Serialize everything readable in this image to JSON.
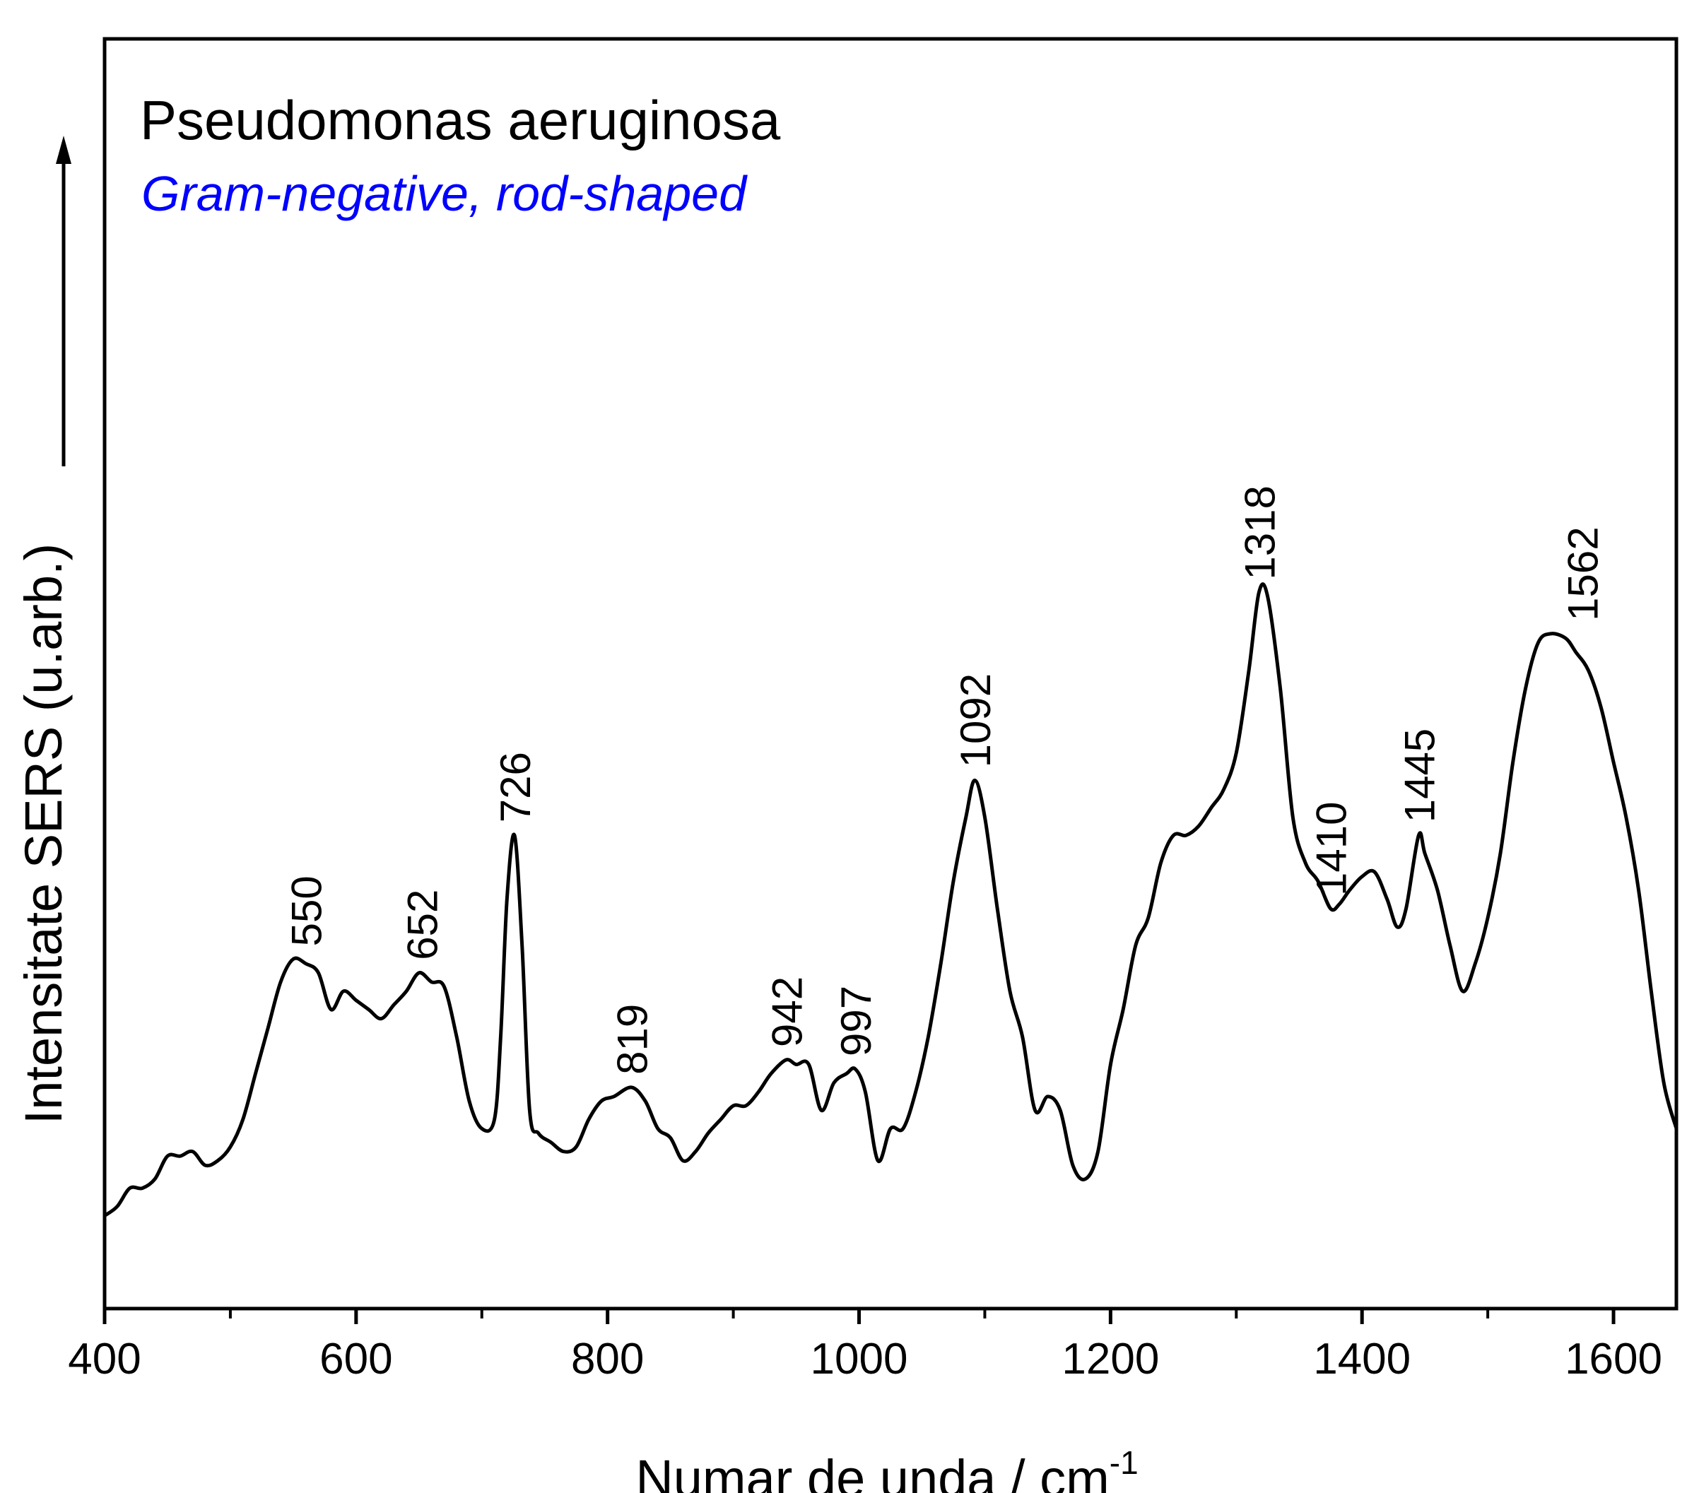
{
  "chart_data": {
    "type": "line",
    "title": "Pseudomonas aeruginosa",
    "subtitle": "Gram-negative, rod-shaped",
    "xlabel_main": "Numar de unda / cm",
    "xlabel_sup": "-1",
    "ylabel": "Intensitate SERS (u.arb.)",
    "xlim": [
      400,
      1650
    ],
    "ylim": [
      0,
      1
    ],
    "x_ticks": [
      400,
      600,
      800,
      1000,
      1200,
      1400,
      1600
    ],
    "x_minor_ticks": [
      500,
      700,
      900,
      1100,
      1300,
      1500
    ],
    "y_ticks_shown": false,
    "colors": {
      "line": "#000000",
      "subtitle": "#0000ff",
      "axis": "#000000"
    },
    "series": [
      {
        "name": "Pseudomonas aeruginosa",
        "x": [
          400,
          410,
          420,
          430,
          440,
          450,
          460,
          470,
          480,
          490,
          500,
          510,
          520,
          530,
          540,
          550,
          560,
          570,
          580,
          590,
          600,
          610,
          620,
          630,
          640,
          650,
          660,
          670,
          680,
          690,
          700,
          710,
          715,
          720,
          726,
          732,
          738,
          745,
          755,
          765,
          775,
          785,
          795,
          805,
          819,
          830,
          840,
          850,
          860,
          870,
          880,
          890,
          900,
          910,
          920,
          930,
          942,
          950,
          960,
          970,
          980,
          990,
          997,
          1005,
          1015,
          1025,
          1035,
          1045,
          1055,
          1065,
          1075,
          1085,
          1092,
          1100,
          1110,
          1120,
          1130,
          1140,
          1150,
          1160,
          1170,
          1180,
          1190,
          1200,
          1210,
          1220,
          1230,
          1240,
          1250,
          1260,
          1270,
          1280,
          1290,
          1300,
          1310,
          1318,
          1325,
          1335,
          1345,
          1355,
          1365,
          1375,
          1382,
          1390,
          1400,
          1410,
          1420,
          1428,
          1435,
          1445,
          1450,
          1460,
          1470,
          1480,
          1490,
          1500,
          1510,
          1520,
          1530,
          1540,
          1550,
          1562,
          1570,
          1580,
          1590,
          1600,
          1610,
          1620,
          1630,
          1640,
          1650
        ],
        "y": [
          0.005,
          0.015,
          0.035,
          0.035,
          0.045,
          0.07,
          0.07,
          0.075,
          0.06,
          0.065,
          0.08,
          0.11,
          0.16,
          0.21,
          0.26,
          0.285,
          0.28,
          0.27,
          0.23,
          0.25,
          0.24,
          0.23,
          0.22,
          0.235,
          0.25,
          0.27,
          0.26,
          0.255,
          0.2,
          0.13,
          0.1,
          0.11,
          0.2,
          0.35,
          0.42,
          0.3,
          0.12,
          0.095,
          0.085,
          0.075,
          0.08,
          0.11,
          0.13,
          0.135,
          0.145,
          0.13,
          0.1,
          0.09,
          0.065,
          0.075,
          0.095,
          0.11,
          0.125,
          0.125,
          0.14,
          0.16,
          0.175,
          0.17,
          0.17,
          0.12,
          0.15,
          0.16,
          0.165,
          0.14,
          0.065,
          0.1,
          0.1,
          0.14,
          0.2,
          0.28,
          0.37,
          0.44,
          0.48,
          0.44,
          0.34,
          0.25,
          0.2,
          0.12,
          0.135,
          0.12,
          0.06,
          0.045,
          0.075,
          0.17,
          0.23,
          0.3,
          0.33,
          0.39,
          0.42,
          0.42,
          0.43,
          0.45,
          0.47,
          0.51,
          0.6,
          0.685,
          0.68,
          0.58,
          0.44,
          0.39,
          0.37,
          0.34,
          0.345,
          0.36,
          0.375,
          0.38,
          0.35,
          0.32,
          0.34,
          0.42,
          0.4,
          0.36,
          0.3,
          0.25,
          0.28,
          0.33,
          0.4,
          0.5,
          0.58,
          0.63,
          0.64,
          0.635,
          0.62,
          0.6,
          0.56,
          0.5,
          0.44,
          0.36,
          0.25,
          0.15,
          0.1
        ]
      }
    ],
    "annotations": [
      {
        "label": "550",
        "x": 560,
        "y": 0.285
      },
      {
        "label": "652",
        "x": 652,
        "y": 0.27
      },
      {
        "label": "726",
        "x": 726,
        "y": 0.42
      },
      {
        "label": "819",
        "x": 819,
        "y": 0.145
      },
      {
        "label": "942",
        "x": 942,
        "y": 0.175
      },
      {
        "label": "997",
        "x": 997,
        "y": 0.165
      },
      {
        "label": "1092",
        "x": 1092,
        "y": 0.48
      },
      {
        "label": "1318",
        "x": 1318,
        "y": 0.685
      },
      {
        "label": "1410",
        "x": 1375,
        "y": 0.34
      },
      {
        "label": "1445",
        "x": 1445,
        "y": 0.42
      },
      {
        "label": "1562",
        "x": 1575,
        "y": 0.64
      }
    ]
  }
}
